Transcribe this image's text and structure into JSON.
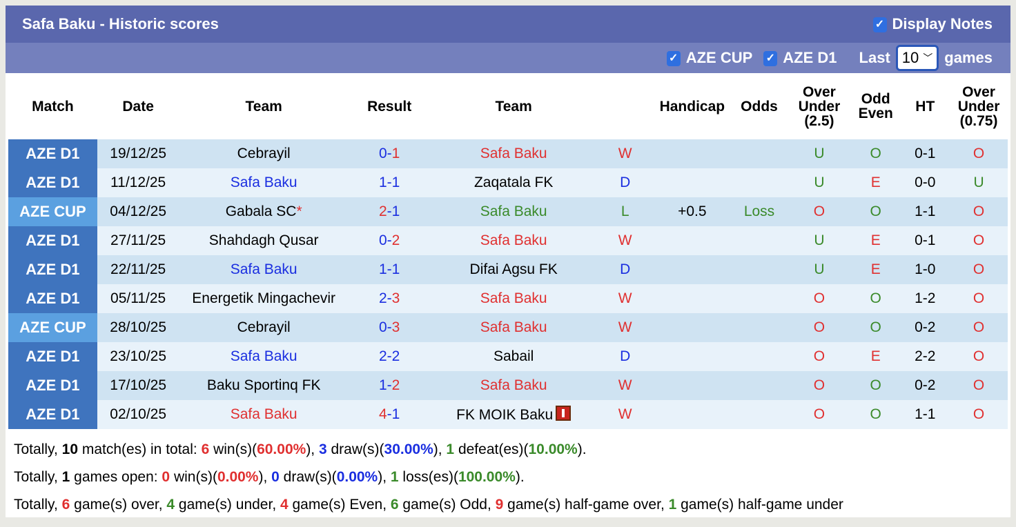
{
  "header": {
    "title": "Safa Baku - Historic scores",
    "display_notes": "Display Notes"
  },
  "filters": {
    "cup": "AZE CUP",
    "d1": "AZE D1",
    "last": "Last",
    "count": "10",
    "games": "games"
  },
  "columns": [
    "Match",
    "Date",
    "Team",
    "Result",
    "Team",
    "",
    "Handicap",
    "Odds",
    "Over Under (2.5)",
    "Odd Even",
    "HT",
    "Over Under (0.75)"
  ],
  "colors": {
    "win": "#e03030",
    "draw": "#1a2ee0",
    "loss": "#3a8a2a"
  },
  "rows": [
    {
      "match": "AZE D1",
      "date": "19/12/25",
      "home": "Cebrayil",
      "hs": "0",
      "as": "1",
      "away": "Safa Baku",
      "res": "W",
      "hc": "",
      "odds": "",
      "ou": "U",
      "oe": "O",
      "ht": "0-1",
      "ou2": "O"
    },
    {
      "match": "AZE D1",
      "date": "11/12/25",
      "home": "Safa Baku",
      "hs": "1",
      "as": "1",
      "away": "Zaqatala FK",
      "res": "D",
      "hc": "",
      "odds": "",
      "ou": "U",
      "oe": "E",
      "ht": "0-0",
      "ou2": "U"
    },
    {
      "match": "AZE CUP",
      "date": "04/12/25",
      "home": "Gabala SC",
      "hs": "2",
      "as": "1",
      "away": "Safa Baku",
      "res": "L",
      "hc": "+0.5",
      "odds": "Loss",
      "ou": "O",
      "oe": "O",
      "ht": "1-1",
      "ou2": "O",
      "note": "*"
    },
    {
      "match": "AZE D1",
      "date": "27/11/25",
      "home": "Shahdagh Qusar",
      "hs": "0",
      "as": "2",
      "away": "Safa Baku",
      "res": "W",
      "hc": "",
      "odds": "",
      "ou": "U",
      "oe": "E",
      "ht": "0-1",
      "ou2": "O"
    },
    {
      "match": "AZE D1",
      "date": "22/11/25",
      "home": "Safa Baku",
      "hs": "1",
      "as": "1",
      "away": "Difai Agsu FK",
      "res": "D",
      "hc": "",
      "odds": "",
      "ou": "U",
      "oe": "E",
      "ht": "1-0",
      "ou2": "O"
    },
    {
      "match": "AZE D1",
      "date": "05/11/25",
      "home": "Energetik Mingachevir",
      "hs": "2",
      "as": "3",
      "away": "Safa Baku",
      "res": "W",
      "hc": "",
      "odds": "",
      "ou": "O",
      "oe": "O",
      "ht": "1-2",
      "ou2": "O"
    },
    {
      "match": "AZE CUP",
      "date": "28/10/25",
      "home": "Cebrayil",
      "hs": "0",
      "as": "3",
      "away": "Safa Baku",
      "res": "W",
      "hc": "",
      "odds": "",
      "ou": "O",
      "oe": "O",
      "ht": "0-2",
      "ou2": "O"
    },
    {
      "match": "AZE D1",
      "date": "23/10/25",
      "home": "Safa Baku",
      "hs": "2",
      "as": "2",
      "away": "Sabail",
      "res": "D",
      "hc": "",
      "odds": "",
      "ou": "O",
      "oe": "E",
      "ht": "2-2",
      "ou2": "O"
    },
    {
      "match": "AZE D1",
      "date": "17/10/25",
      "home": "Baku Sportinq FK",
      "hs": "1",
      "as": "2",
      "away": "Safa Baku",
      "res": "W",
      "hc": "",
      "odds": "",
      "ou": "O",
      "oe": "O",
      "ht": "0-2",
      "ou2": "O"
    },
    {
      "match": "AZE D1",
      "date": "02/10/25",
      "home": "Safa Baku",
      "hs": "4",
      "as": "1",
      "away": "FK MOIK Baku",
      "res": "W",
      "hc": "",
      "odds": "",
      "ou": "O",
      "oe": "O",
      "ht": "1-1",
      "ou2": "O",
      "red_card_away": true
    }
  ],
  "summary": [
    [
      [
        "Totally, ",
        ""
      ],
      [
        "10",
        "b"
      ],
      [
        " match(es) in total: ",
        ""
      ],
      [
        "6",
        "r"
      ],
      [
        " win(s)(",
        ""
      ],
      [
        "60.00%",
        "rb"
      ],
      [
        "), ",
        ""
      ],
      [
        "3",
        "bl"
      ],
      [
        " draw(s)(",
        ""
      ],
      [
        "30.00%",
        "blb"
      ],
      [
        "), ",
        ""
      ],
      [
        "1",
        "g"
      ],
      [
        " defeat(es)(",
        ""
      ],
      [
        "10.00%",
        "gb"
      ],
      [
        ").",
        ""
      ]
    ],
    [
      [
        "Totally, ",
        ""
      ],
      [
        "1",
        "b"
      ],
      [
        " games open: ",
        ""
      ],
      [
        "0",
        "r"
      ],
      [
        " win(s)(",
        ""
      ],
      [
        "0.00%",
        "rb"
      ],
      [
        "), ",
        ""
      ],
      [
        "0",
        "bl"
      ],
      [
        " draw(s)(",
        ""
      ],
      [
        "0.00%",
        "blb"
      ],
      [
        "), ",
        ""
      ],
      [
        "1",
        "g"
      ],
      [
        " loss(es)(",
        ""
      ],
      [
        "100.00%",
        "gb"
      ],
      [
        ").",
        ""
      ]
    ],
    [
      [
        "Totally, ",
        ""
      ],
      [
        "6",
        "r"
      ],
      [
        " game(s) over, ",
        ""
      ],
      [
        "4",
        "g"
      ],
      [
        " game(s) under, ",
        ""
      ],
      [
        "4",
        "r"
      ],
      [
        " game(s) Even, ",
        ""
      ],
      [
        "6",
        "g"
      ],
      [
        " game(s) Odd, ",
        ""
      ],
      [
        "9",
        "r"
      ],
      [
        " game(s) half-game over, ",
        ""
      ],
      [
        "1",
        "g"
      ],
      [
        " game(s) half-game under",
        ""
      ]
    ]
  ]
}
